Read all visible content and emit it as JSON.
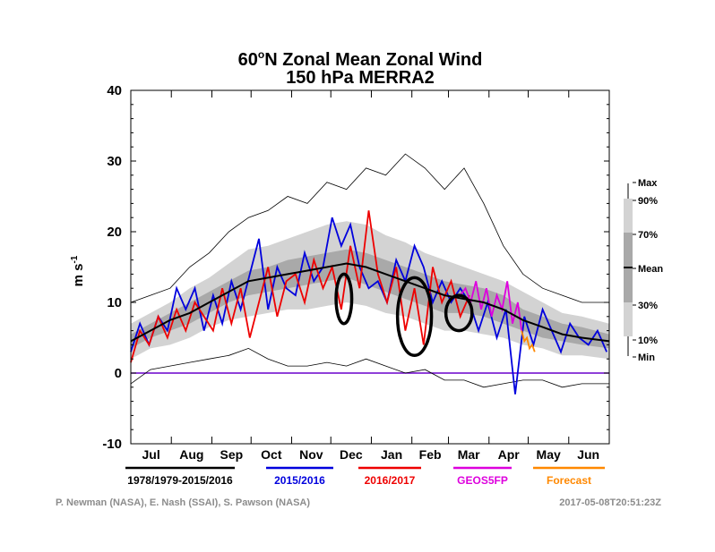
{
  "chart_data": {
    "type": "line",
    "title_line1": "60",
    "title_degree": "o",
    "title_line1_rest": "N Zonal Mean Zonal Wind",
    "title_line2": "150 hPa   MERRA2",
    "ylabel": "m s",
    "ylabel_exp": "-1",
    "ylim": [
      -10,
      40
    ],
    "yticks": [
      "-10",
      "0",
      "10",
      "20",
      "30",
      "40"
    ],
    "x_range_days": [
      0,
      366
    ],
    "months": [
      "Jul",
      "Aug",
      "Sep",
      "Oct",
      "Nov",
      "Dec",
      "Jan",
      "Feb",
      "Mar",
      "Apr",
      "May",
      "Jun"
    ],
    "zero_line": 0,
    "colorbar_labels": [
      "Max",
      "90%",
      "70%",
      "Mean",
      "30%",
      "10%",
      "Min"
    ],
    "legend": [
      {
        "label": "1978/1979-2015/2016",
        "color": "#000000"
      },
      {
        "label": "2015/2016",
        "color": "#0000dd"
      },
      {
        "label": "2016/2017",
        "color": "#ee0000"
      },
      {
        "label": "GEOS5FP",
        "color": "#dd00dd"
      },
      {
        "label": "Forecast",
        "color": "#ff8800"
      }
    ],
    "credit_left": "P. Newman (NASA), E. Nash (SSAI), S. Pawson (NASA)",
    "credit_right": "2017-05-08T20:51:23Z",
    "climatology_days": [
      0,
      15,
      30,
      45,
      60,
      75,
      90,
      105,
      120,
      135,
      150,
      165,
      180,
      195,
      210,
      225,
      240,
      255,
      270,
      285,
      300,
      315,
      330,
      345,
      366
    ],
    "mean": [
      4.5,
      6,
      7.5,
      8.5,
      10,
      11.5,
      13,
      13.5,
      14,
      14.5,
      15,
      15.5,
      15,
      14,
      13,
      12,
      11,
      10.5,
      10,
      9,
      7.5,
      6.5,
      5.5,
      5,
      4.5
    ],
    "p70": [
      5.5,
      7,
      8.5,
      10,
      11.5,
      13,
      14.5,
      15,
      16,
      16.5,
      17,
      17.5,
      17,
      16,
      15,
      14,
      13,
      12.5,
      12,
      11,
      9,
      8,
      7,
      6.5,
      5.5
    ],
    "p30": [
      3.5,
      5,
      6,
      7,
      8.5,
      10,
      11,
      11.5,
      12,
      12.5,
      13,
      13.5,
      12.5,
      11.5,
      10.5,
      9.5,
      8.5,
      8.5,
      8,
      7,
      6,
      5,
      4.5,
      4,
      3.5
    ],
    "p90": [
      7,
      8.5,
      10,
      12,
      13.5,
      15.5,
      17.5,
      18,
      19,
      20,
      21,
      21.5,
      21,
      19.5,
      18.5,
      17,
      16,
      15,
      14,
      13,
      11.5,
      10,
      8.5,
      8,
      7
    ],
    "p10": [
      2,
      3.5,
      4,
      5,
      6.5,
      7.5,
      8,
      8.5,
      9,
      9,
      9.5,
      10,
      9.5,
      8.5,
      8,
      7,
      6,
      6,
      5.5,
      5,
      4,
      3.5,
      2.5,
      2.5,
      2
    ],
    "max": [
      10,
      11,
      12,
      15,
      17,
      20,
      22,
      23,
      25,
      24,
      27,
      26,
      29,
      28,
      31,
      29,
      26,
      29,
      24,
      18,
      14,
      12,
      11,
      10,
      10
    ],
    "min": [
      -1.5,
      0.5,
      1,
      1.5,
      2,
      2.5,
      3.5,
      2,
      1,
      1,
      1.5,
      1,
      2,
      1,
      0,
      0.5,
      -1,
      -1,
      -2,
      -1.5,
      -1,
      -1,
      -2,
      -1.5,
      -1.5
    ],
    "series_2015_2016": {
      "days": [
        0,
        7,
        14,
        21,
        28,
        35,
        42,
        49,
        56,
        63,
        70,
        77,
        84,
        91,
        98,
        105,
        112,
        119,
        126,
        133,
        140,
        147,
        154,
        161,
        168,
        175,
        182,
        189,
        196,
        203,
        210,
        217,
        224,
        231,
        238,
        245,
        252,
        259,
        266,
        273,
        280,
        287,
        294,
        301,
        308,
        315,
        322,
        329,
        336,
        343,
        350,
        357,
        364
      ],
      "values": [
        3,
        7,
        4,
        8,
        6,
        12,
        9,
        12,
        6,
        11,
        7,
        13,
        9,
        14,
        19,
        9,
        15,
        12,
        11,
        17,
        13,
        15,
        22,
        18,
        21,
        15,
        12,
        13,
        10,
        16,
        13,
        18,
        15,
        10,
        13,
        10,
        12,
        10,
        6,
        10,
        5,
        9,
        -3,
        8,
        4,
        9,
        6,
        3,
        7,
        5,
        4,
        6,
        3
      ]
    },
    "series_2016_2017": {
      "days": [
        0,
        7,
        14,
        21,
        28,
        35,
        42,
        49,
        56,
        63,
        70,
        77,
        84,
        91,
        98,
        105,
        112,
        119,
        126,
        133,
        140,
        147,
        154,
        161,
        168,
        175,
        182,
        189,
        196,
        203,
        210,
        217,
        224,
        231,
        238,
        245,
        252,
        259
      ],
      "values": [
        1.5,
        6,
        4,
        8,
        5,
        9,
        6,
        10,
        8,
        6,
        12,
        7,
        12,
        5,
        10,
        15,
        8,
        13,
        14,
        10,
        16,
        12,
        15,
        9,
        18,
        12,
        23,
        14,
        10,
        15,
        6,
        12,
        4,
        15,
        10,
        13,
        8,
        11
      ]
    },
    "series_geos5fp": {
      "days": [
        252,
        256,
        260,
        264,
        268,
        272,
        276,
        280,
        284,
        288,
        292,
        296,
        299
      ],
      "values": [
        11,
        12,
        10,
        13,
        9,
        12,
        8,
        11,
        9,
        13,
        7,
        10,
        6
      ]
    },
    "series_forecast": {
      "days": [
        299,
        301,
        303,
        305,
        307,
        309
      ],
      "values": [
        6,
        4.5,
        5,
        3.5,
        4,
        3
      ]
    },
    "ellipses": [
      {
        "day": 163,
        "value": 10.5,
        "rx_days": 6,
        "ry": 3.5
      },
      {
        "day": 217,
        "value": 8,
        "rx_days": 13,
        "ry": 5.5
      },
      {
        "day": 251,
        "value": 8.5,
        "rx_days": 10,
        "ry": 2.5
      }
    ]
  }
}
